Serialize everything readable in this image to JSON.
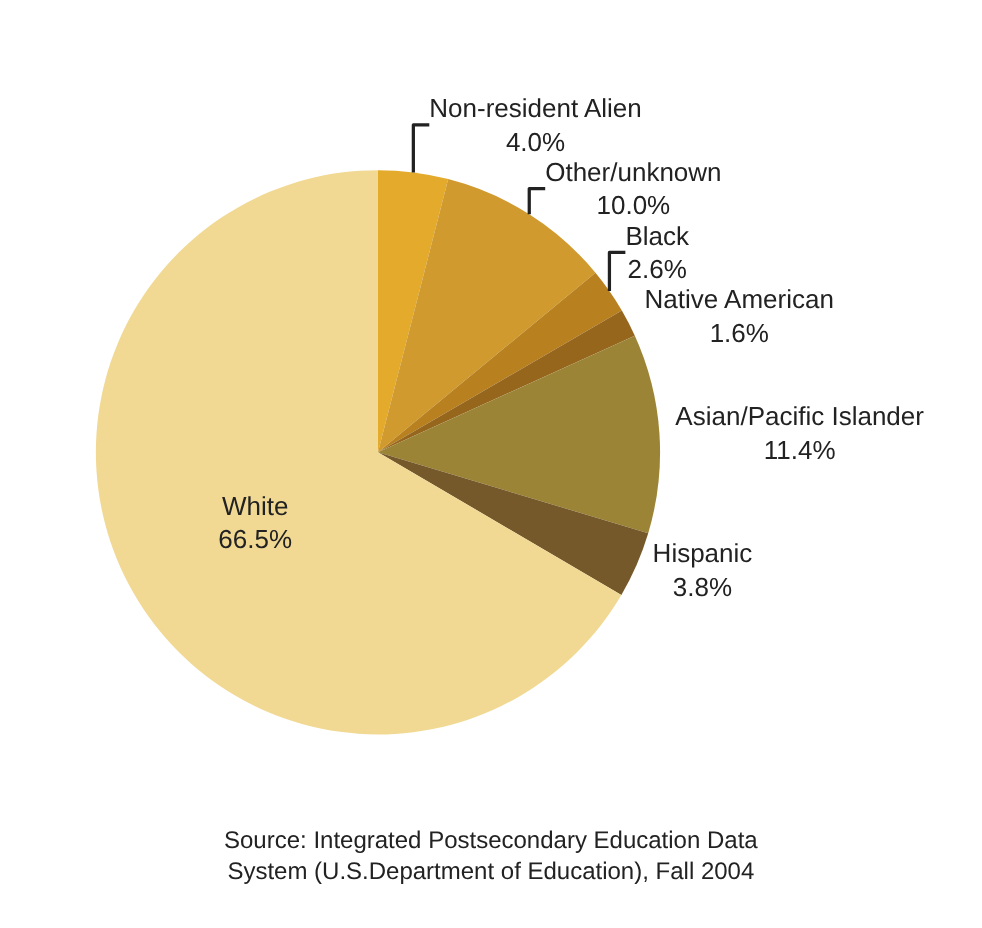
{
  "chart_data": {
    "type": "pie",
    "categories": [
      "Non-resident Alien",
      "Other/unknown",
      "Black",
      "Native American",
      "Asian/Pacific Islander",
      "Hispanic",
      "White"
    ],
    "values": [
      4.0,
      10.0,
      2.6,
      1.6,
      11.4,
      3.8,
      66.5
    ],
    "colors": [
      "#e3aa2c",
      "#d09a2e",
      "#b8801e",
      "#96661c",
      "#9c8436",
      "#75592a",
      "#f1d994"
    ],
    "value_labels": [
      "4.0%",
      "10.0%",
      "2.6%",
      "1.6%",
      "11.4%",
      "3.8%",
      "66.5%"
    ],
    "legend": false,
    "annotations": [
      "Source: Integrated Postsecondary Education Data System (U.S.Department of Education), Fall 2004"
    ]
  }
}
